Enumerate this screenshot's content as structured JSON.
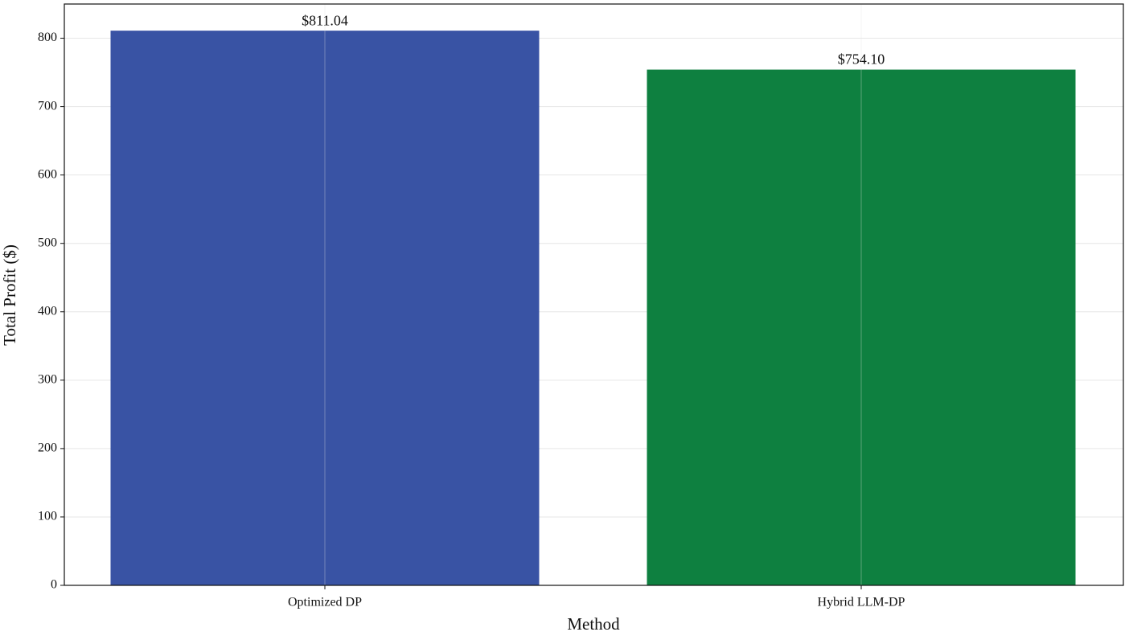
{
  "chart_data": {
    "type": "bar",
    "xlabel": "Method",
    "ylabel": "Total Profit ($)",
    "categories": [
      "Optimized DP",
      "Hybrid LLM-DP"
    ],
    "values": [
      811.04,
      754.1
    ],
    "value_labels": [
      "$811.04",
      "$754.10"
    ],
    "colors": [
      "#3953a4",
      "#0e8040"
    ],
    "ylim": [
      0,
      850
    ],
    "yticks": [
      0,
      100,
      200,
      300,
      400,
      500,
      600,
      700,
      800
    ],
    "grid": true
  }
}
